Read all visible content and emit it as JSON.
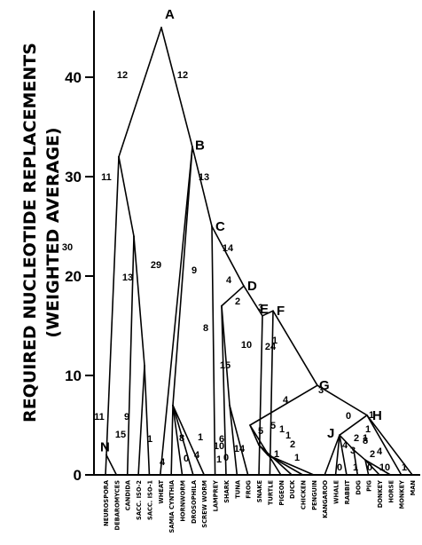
{
  "chart_data": {
    "type": "tree",
    "ylabel_line1": "REQUIRED NUCLEOTIDE REPLACEMENTS",
    "ylabel_line2": "(WEIGHTED AVERAGE)",
    "yticks": [
      "0",
      "10",
      "20",
      "30",
      "40"
    ],
    "ylim": [
      0,
      47
    ],
    "taxa": [
      "NEUROSPORA",
      "DEBAROMYCES",
      "CANDIDA",
      "SACC. ISO-2",
      "SACC. ISO-1",
      "WHEAT",
      "SAMIA CYNTHIA",
      "HORNWORM",
      "DROSOPHILA",
      "SCREW WORM",
      "LAMPREY",
      "SHARK",
      "TUNA",
      "FROG",
      "SNAKE",
      "TURTLE",
      "PIGEON",
      "DUCK",
      "CHICKEN",
      "PENGUIN",
      "KANGAROO",
      "WHALE",
      "RABBIT",
      "DOG",
      "PIG",
      "DONKEY",
      "HORSE",
      "MONKEY",
      "MAN"
    ],
    "nodes": [
      {
        "label": "A",
        "height": 45
      },
      {
        "label": "B",
        "height": 33
      },
      {
        "label": "C",
        "height": 25
      },
      {
        "label": "D",
        "height": 19
      },
      {
        "label": "E",
        "height": 16
      },
      {
        "label": "F",
        "height": 16.5
      },
      {
        "label": "G",
        "height": 9
      },
      {
        "label": "H",
        "height": 6
      },
      {
        "label": "J",
        "height": 4
      },
      {
        "label": "N",
        "height": 2
      }
    ],
    "branch_labels": [
      "12",
      "12",
      "13",
      "11",
      "13",
      "14",
      "30",
      "29",
      "9",
      "4",
      "2",
      "3",
      "24",
      "1",
      "8",
      "15",
      "10",
      "4",
      "3",
      "8",
      "15",
      "11",
      "9",
      "1",
      "4",
      "0",
      "1",
      "8",
      "1",
      "4",
      "6",
      "10",
      "0",
      "14",
      "5",
      "5",
      "1",
      "1",
      "1",
      "2",
      "1",
      "4",
      "3",
      "2",
      "1",
      "1",
      "0",
      "1",
      "2",
      "4",
      "0",
      "1",
      "0",
      "10",
      "1"
    ]
  }
}
